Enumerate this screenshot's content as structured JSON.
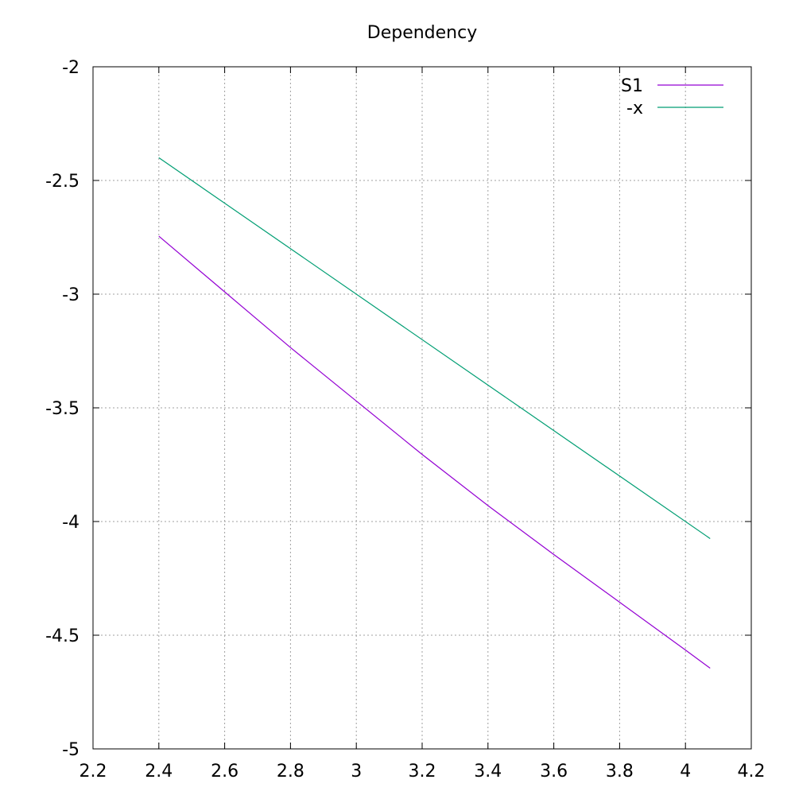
{
  "chart_data": {
    "type": "line",
    "title": "Dependency",
    "xlabel": "",
    "ylabel": "",
    "xlim": [
      2.2,
      4.2
    ],
    "ylim": [
      -5,
      -2
    ],
    "xticks": [
      "2.2",
      "2.4",
      "2.6",
      "2.8",
      "3",
      "3.2",
      "3.4",
      "3.6",
      "3.8",
      "4",
      "4.2"
    ],
    "yticks": [
      "-2",
      "-2.5",
      "-3",
      "-3.5",
      "-4",
      "-4.5",
      "-5"
    ],
    "grid": true,
    "legend_position": "top-right",
    "series": [
      {
        "name": "S1",
        "color": "#9400d3",
        "x": [
          2.4,
          2.6,
          2.8,
          3.0,
          3.2,
          3.4,
          3.6,
          3.8,
          4.0,
          4.075
        ],
        "y": [
          -2.745,
          -2.99,
          -3.235,
          -3.47,
          -3.705,
          -3.93,
          -4.145,
          -4.355,
          -4.565,
          -4.645
        ]
      },
      {
        "name": "-x",
        "color": "#009e73",
        "x": [
          2.4,
          4.075
        ],
        "y": [
          -2.4,
          -4.075
        ]
      }
    ]
  }
}
